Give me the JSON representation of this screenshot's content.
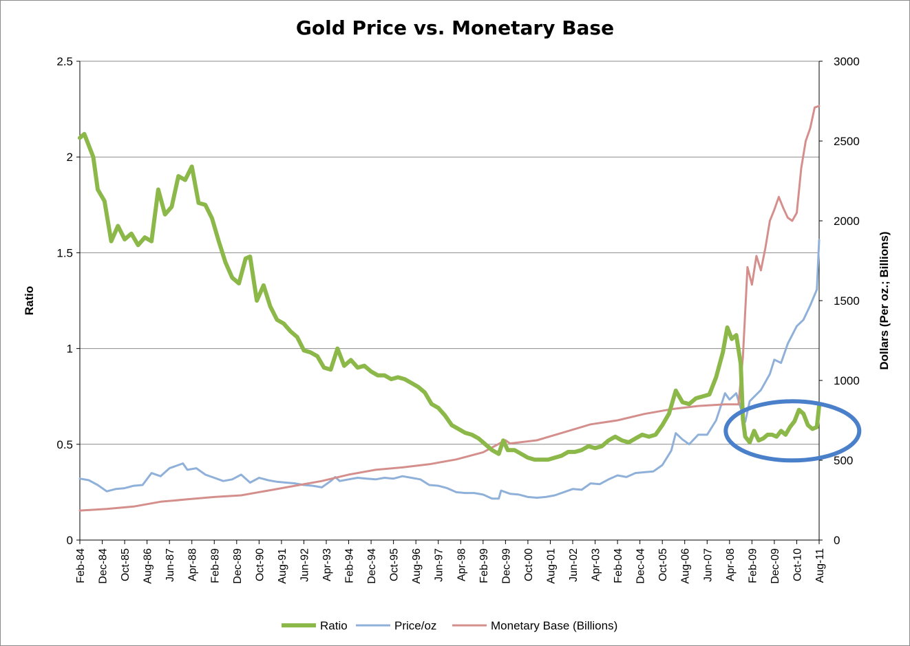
{
  "chart_data": {
    "type": "line",
    "title": "Gold Price vs. Monetary Base",
    "ylabel_left": "Ratio",
    "ylabel_right": "Dollars (Per oz.; Billions)",
    "xlabel": "",
    "ylim_left": [
      0,
      2.5
    ],
    "ylim_right": [
      0,
      3000
    ],
    "yticks_left": [
      "0",
      "0.5",
      "1",
      "1.5",
      "2",
      "2.5"
    ],
    "yticks_right": [
      "0",
      "500",
      "1000",
      "1500",
      "2000",
      "2500",
      "3000"
    ],
    "x_range": [
      "Feb-84",
      "Aug-11"
    ],
    "x_tick_labels": [
      "Feb-84",
      "Dec-84",
      "Oct-85",
      "Aug-86",
      "Jun-87",
      "Apr-88",
      "Feb-89",
      "Dec-89",
      "Oct-90",
      "Aug-91",
      "Jun-92",
      "Apr-93",
      "Feb-94",
      "Dec-94",
      "Oct-95",
      "Aug-96",
      "Jun-97",
      "Apr-98",
      "Feb-99",
      "Dec-99",
      "Oct-00",
      "Aug-01",
      "Jun-02",
      "Apr-03",
      "Feb-04",
      "Dec-04",
      "Oct-05",
      "Aug-06",
      "Jun-07",
      "Apr-08",
      "Feb-09",
      "Dec-09",
      "Oct-10",
      "Aug-11"
    ],
    "grid": true,
    "legend_position": "bottom",
    "annotation": "ellipse highlighting Ratio 2009-2011",
    "series": [
      {
        "name": "Ratio",
        "axis": "left",
        "color": "#8cb84a",
        "points": [
          [
            "Feb-84",
            2.1
          ],
          [
            "Apr-84",
            2.12
          ],
          [
            "Aug-84",
            2.0
          ],
          [
            "Oct-84",
            1.83
          ],
          [
            "Jan-85",
            1.77
          ],
          [
            "Apr-85",
            1.56
          ],
          [
            "Jul-85",
            1.64
          ],
          [
            "Oct-85",
            1.57
          ],
          [
            "Jan-86",
            1.6
          ],
          [
            "Apr-86",
            1.54
          ],
          [
            "Jul-86",
            1.58
          ],
          [
            "Oct-86",
            1.56
          ],
          [
            "Jan-87",
            1.83
          ],
          [
            "Apr-87",
            1.7
          ],
          [
            "Jul-87",
            1.74
          ],
          [
            "Oct-87",
            1.9
          ],
          [
            "Jan-88",
            1.88
          ],
          [
            "Apr-88",
            1.95
          ],
          [
            "Jul-88",
            1.76
          ],
          [
            "Oct-88",
            1.75
          ],
          [
            "Jan-89",
            1.68
          ],
          [
            "Apr-89",
            1.56
          ],
          [
            "Jul-89",
            1.45
          ],
          [
            "Oct-89",
            1.37
          ],
          [
            "Jan-90",
            1.34
          ],
          [
            "Apr-90",
            1.47
          ],
          [
            "Jun-90",
            1.48
          ],
          [
            "Sep-90",
            1.25
          ],
          [
            "Dec-90",
            1.33
          ],
          [
            "Mar-91",
            1.22
          ],
          [
            "Jun-91",
            1.15
          ],
          [
            "Sep-91",
            1.13
          ],
          [
            "Dec-91",
            1.09
          ],
          [
            "Mar-92",
            1.06
          ],
          [
            "Jun-92",
            0.99
          ],
          [
            "Sep-92",
            0.98
          ],
          [
            "Dec-92",
            0.96
          ],
          [
            "Mar-93",
            0.9
          ],
          [
            "Jun-93",
            0.89
          ],
          [
            "Sep-93",
            1.0
          ],
          [
            "Dec-93",
            0.91
          ],
          [
            "Mar-94",
            0.94
          ],
          [
            "Jun-94",
            0.9
          ],
          [
            "Sep-94",
            0.91
          ],
          [
            "Dec-94",
            0.88
          ],
          [
            "Mar-95",
            0.86
          ],
          [
            "Jun-95",
            0.86
          ],
          [
            "Sep-95",
            0.84
          ],
          [
            "Dec-95",
            0.85
          ],
          [
            "Mar-96",
            0.84
          ],
          [
            "Jun-96",
            0.82
          ],
          [
            "Sep-96",
            0.8
          ],
          [
            "Dec-96",
            0.77
          ],
          [
            "Mar-97",
            0.71
          ],
          [
            "Jun-97",
            0.69
          ],
          [
            "Sep-97",
            0.65
          ],
          [
            "Dec-97",
            0.6
          ],
          [
            "Mar-98",
            0.58
          ],
          [
            "Jun-98",
            0.56
          ],
          [
            "Sep-98",
            0.55
          ],
          [
            "Dec-98",
            0.53
          ],
          [
            "Mar-99",
            0.5
          ],
          [
            "Jun-99",
            0.47
          ],
          [
            "Sep-99",
            0.45
          ],
          [
            "Nov-99",
            0.52
          ],
          [
            "Jan-00",
            0.47
          ],
          [
            "Apr-00",
            0.47
          ],
          [
            "Jul-00",
            0.45
          ],
          [
            "Oct-00",
            0.43
          ],
          [
            "Jan-01",
            0.42
          ],
          [
            "Apr-01",
            0.42
          ],
          [
            "Jul-01",
            0.42
          ],
          [
            "Oct-01",
            0.43
          ],
          [
            "Jan-02",
            0.44
          ],
          [
            "Apr-02",
            0.46
          ],
          [
            "Jul-02",
            0.46
          ],
          [
            "Oct-02",
            0.47
          ],
          [
            "Jan-03",
            0.49
          ],
          [
            "Apr-03",
            0.48
          ],
          [
            "Jul-03",
            0.49
          ],
          [
            "Oct-03",
            0.52
          ],
          [
            "Jan-04",
            0.54
          ],
          [
            "Apr-04",
            0.52
          ],
          [
            "Jul-04",
            0.51
          ],
          [
            "Oct-04",
            0.53
          ],
          [
            "Jan-05",
            0.55
          ],
          [
            "Apr-05",
            0.54
          ],
          [
            "Jul-05",
            0.55
          ],
          [
            "Oct-05",
            0.6
          ],
          [
            "Jan-06",
            0.66
          ],
          [
            "Apr-06",
            0.78
          ],
          [
            "Jul-06",
            0.72
          ],
          [
            "Oct-06",
            0.71
          ],
          [
            "Jan-07",
            0.74
          ],
          [
            "Apr-07",
            0.75
          ],
          [
            "Jul-07",
            0.76
          ],
          [
            "Oct-07",
            0.85
          ],
          [
            "Jan-08",
            0.98
          ],
          [
            "Mar-08",
            1.11
          ],
          [
            "May-08",
            1.05
          ],
          [
            "Jul-08",
            1.07
          ],
          [
            "Sep-08",
            0.92
          ],
          [
            "Oct-08",
            0.63
          ],
          [
            "Nov-08",
            0.54
          ],
          [
            "Jan-09",
            0.51
          ],
          [
            "Mar-09",
            0.57
          ],
          [
            "May-09",
            0.52
          ],
          [
            "Jul-09",
            0.53
          ],
          [
            "Sep-09",
            0.55
          ],
          [
            "Nov-09",
            0.55
          ],
          [
            "Jan-10",
            0.54
          ],
          [
            "Mar-10",
            0.57
          ],
          [
            "May-10",
            0.55
          ],
          [
            "Jul-10",
            0.59
          ],
          [
            "Sep-10",
            0.62
          ],
          [
            "Nov-10",
            0.68
          ],
          [
            "Jan-11",
            0.66
          ],
          [
            "Mar-11",
            0.6
          ],
          [
            "May-11",
            0.58
          ],
          [
            "Jul-11",
            0.59
          ],
          [
            "Aug-11",
            0.7
          ]
        ]
      },
      {
        "name": "Price/oz",
        "axis": "right",
        "color": "#8fb0d8",
        "points": [
          [
            "Feb-84",
            385
          ],
          [
            "Jun-84",
            375
          ],
          [
            "Oct-84",
            345
          ],
          [
            "Feb-85",
            305
          ],
          [
            "Jun-85",
            320
          ],
          [
            "Oct-85",
            325
          ],
          [
            "Feb-86",
            340
          ],
          [
            "Jun-86",
            345
          ],
          [
            "Oct-86",
            420
          ],
          [
            "Feb-87",
            400
          ],
          [
            "Jun-87",
            450
          ],
          [
            "Oct-87",
            470
          ],
          [
            "Dec-87",
            480
          ],
          [
            "Feb-88",
            440
          ],
          [
            "Jun-88",
            450
          ],
          [
            "Oct-88",
            410
          ],
          [
            "Feb-89",
            390
          ],
          [
            "Jun-89",
            370
          ],
          [
            "Oct-89",
            380
          ],
          [
            "Feb-90",
            410
          ],
          [
            "Jun-90",
            360
          ],
          [
            "Oct-90",
            390
          ],
          [
            "Feb-91",
            375
          ],
          [
            "Jun-91",
            365
          ],
          [
            "Oct-91",
            360
          ],
          [
            "Feb-92",
            355
          ],
          [
            "Jun-92",
            345
          ],
          [
            "Oct-92",
            340
          ],
          [
            "Feb-93",
            330
          ],
          [
            "Jun-93",
            370
          ],
          [
            "Aug-93",
            395
          ],
          [
            "Oct-93",
            370
          ],
          [
            "Feb-94",
            380
          ],
          [
            "Jun-94",
            390
          ],
          [
            "Oct-94",
            385
          ],
          [
            "Feb-95",
            380
          ],
          [
            "Jun-95",
            390
          ],
          [
            "Oct-95",
            385
          ],
          [
            "Feb-96",
            400
          ],
          [
            "Jun-96",
            390
          ],
          [
            "Oct-96",
            380
          ],
          [
            "Feb-97",
            345
          ],
          [
            "Jun-97",
            340
          ],
          [
            "Oct-97",
            325
          ],
          [
            "Feb-98",
            300
          ],
          [
            "Jun-98",
            295
          ],
          [
            "Oct-98",
            295
          ],
          [
            "Feb-99",
            285
          ],
          [
            "Jun-99",
            260
          ],
          [
            "Sep-99",
            260
          ],
          [
            "Oct-99",
            310
          ],
          [
            "Feb-00",
            290
          ],
          [
            "Jun-00",
            285
          ],
          [
            "Oct-00",
            270
          ],
          [
            "Feb-01",
            265
          ],
          [
            "Jun-01",
            270
          ],
          [
            "Oct-01",
            280
          ],
          [
            "Feb-02",
            300
          ],
          [
            "Jun-02",
            320
          ],
          [
            "Oct-02",
            315
          ],
          [
            "Feb-03",
            355
          ],
          [
            "Jun-03",
            350
          ],
          [
            "Oct-03",
            380
          ],
          [
            "Feb-04",
            405
          ],
          [
            "Jun-04",
            395
          ],
          [
            "Oct-04",
            420
          ],
          [
            "Feb-05",
            425
          ],
          [
            "Jun-05",
            430
          ],
          [
            "Oct-05",
            470
          ],
          [
            "Feb-06",
            560
          ],
          [
            "Apr-06",
            670
          ],
          [
            "Jul-06",
            630
          ],
          [
            "Oct-06",
            600
          ],
          [
            "Feb-07",
            660
          ],
          [
            "Jun-07",
            660
          ],
          [
            "Oct-07",
            750
          ],
          [
            "Feb-08",
            920
          ],
          [
            "Apr-08",
            880
          ],
          [
            "Jul-08",
            920
          ],
          [
            "Oct-08",
            780
          ],
          [
            "Nov-08",
            740
          ],
          [
            "Jan-09",
            870
          ],
          [
            "Jun-09",
            940
          ],
          [
            "Oct-09",
            1040
          ],
          [
            "Dec-09",
            1130
          ],
          [
            "Mar-10",
            1110
          ],
          [
            "Jun-10",
            1230
          ],
          [
            "Oct-10",
            1340
          ],
          [
            "Jan-11",
            1380
          ],
          [
            "Apr-11",
            1470
          ],
          [
            "Jul-11",
            1570
          ],
          [
            "Aug-11",
            1880
          ]
        ]
      },
      {
        "name": "Monetary Base (Billions)",
        "axis": "right",
        "color": "#d48f8c",
        "points": [
          [
            "Feb-84",
            185
          ],
          [
            "Feb-85",
            195
          ],
          [
            "Feb-86",
            210
          ],
          [
            "Feb-87",
            240
          ],
          [
            "Feb-88",
            255
          ],
          [
            "Feb-89",
            270
          ],
          [
            "Feb-90",
            280
          ],
          [
            "Feb-91",
            310
          ],
          [
            "Feb-92",
            340
          ],
          [
            "Feb-93",
            370
          ],
          [
            "Feb-94",
            410
          ],
          [
            "Feb-95",
            440
          ],
          [
            "Feb-96",
            455
          ],
          [
            "Feb-97",
            475
          ],
          [
            "Feb-98",
            505
          ],
          [
            "Feb-99,",
            550
          ],
          [
            "Dec-99",
            625
          ],
          [
            "Feb-00",
            605
          ],
          [
            "Feb-01",
            625
          ],
          [
            "Feb-02",
            675
          ],
          [
            "Feb-03",
            725
          ],
          [
            "Feb-04",
            750
          ],
          [
            "Feb-05",
            790
          ],
          [
            "Feb-06",
            820
          ],
          [
            "Feb-07",
            840
          ],
          [
            "Feb-08",
            850
          ],
          [
            "Aug-08",
            850
          ],
          [
            "Oct-08",
            1150
          ],
          [
            "Dec-08",
            1710
          ],
          [
            "Feb-09",
            1600
          ],
          [
            "Apr-09",
            1780
          ],
          [
            "Jun-09",
            1690
          ],
          [
            "Aug-09",
            1830
          ],
          [
            "Oct-09",
            2000
          ],
          [
            "Dec-09",
            2070
          ],
          [
            "Feb-10",
            2150
          ],
          [
            "Apr-10",
            2080
          ],
          [
            "Jun-10",
            2020
          ],
          [
            "Aug-10",
            2000
          ],
          [
            "Oct-10",
            2050
          ],
          [
            "Dec-10",
            2330
          ],
          [
            "Feb-11",
            2500
          ],
          [
            "Apr-11",
            2580
          ],
          [
            "Jun-11",
            2710
          ],
          [
            "Aug-11",
            2720
          ]
        ]
      }
    ]
  }
}
